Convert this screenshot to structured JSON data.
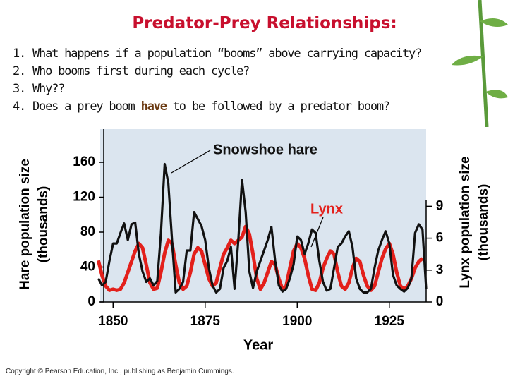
{
  "slide": {
    "title": "Predator-Prey Relationships:",
    "questions": [
      {
        "number": "1.",
        "parts": [
          "What happens if a population “booms” above carrying capacity?"
        ]
      },
      {
        "number": "2.",
        "parts": [
          "Who booms first during each cycle?"
        ]
      },
      {
        "number": "3.",
        "parts": [
          "Why??"
        ]
      },
      {
        "number": "4.",
        "parts": [
          "Does a prey boom ",
          "have",
          " to be followed by a predator boom?"
        ]
      }
    ],
    "copyright": "Copyright © Pearson Education, Inc., publishing as Benjamin Cummings."
  },
  "chart_data": {
    "type": "line",
    "xlabel": "Year",
    "ylabel": [
      "Hare population size",
      "(thousands)"
    ],
    "y2label": [
      "Lynx population size",
      "(thousands)"
    ],
    "annotations": [
      "Snowshoe hare",
      "Lynx"
    ],
    "x": [
      1846,
      1847,
      1848,
      1849,
      1850,
      1851,
      1852,
      1853,
      1854,
      1855,
      1856,
      1857,
      1858,
      1859,
      1860,
      1861,
      1862,
      1863,
      1864,
      1865,
      1866,
      1867,
      1868,
      1869,
      1870,
      1871,
      1872,
      1873,
      1874,
      1875,
      1876,
      1877,
      1878,
      1879,
      1880,
      1881,
      1882,
      1883,
      1884,
      1885,
      1886,
      1887,
      1888,
      1889,
      1890,
      1891,
      1892,
      1893,
      1894,
      1895,
      1896,
      1897,
      1898,
      1899,
      1900,
      1901,
      1902,
      1903,
      1904,
      1905,
      1906,
      1907,
      1908,
      1909,
      1910,
      1911,
      1912,
      1913,
      1914,
      1915,
      1916,
      1917,
      1918,
      1919,
      1920,
      1921,
      1922,
      1923,
      1924,
      1925,
      1926,
      1927,
      1928,
      1929,
      1930,
      1931,
      1932,
      1933,
      1934,
      1935
    ],
    "series": [
      {
        "name": "Snowshoe hare",
        "color": "#111111",
        "axis": "y",
        "values": [
          27,
          19,
          23,
          47,
          67,
          67,
          79,
          90,
          71,
          89,
          91,
          55,
          35,
          23,
          27,
          19,
          24,
          79,
          158,
          136,
          71,
          11,
          15,
          23,
          59,
          59,
          103,
          95,
          87,
          71,
          39,
          19,
          11,
          15,
          39,
          47,
          63,
          15,
          71,
          140,
          103,
          35,
          16,
          35,
          47,
          59,
          71,
          86,
          47,
          19,
          12,
          15,
          27,
          43,
          75,
          71,
          55,
          67,
          83,
          79,
          47,
          23,
          13,
          15,
          39,
          63,
          67,
          75,
          81,
          63,
          27,
          15,
          11,
          11,
          15,
          39,
          59,
          71,
          81,
          67,
          31,
          19,
          15,
          12,
          16,
          27,
          79,
          89,
          83,
          15
        ]
      },
      {
        "name": "Lynx",
        "color": "#e3201b",
        "axis": "y2",
        "values": [
          3.9,
          2.5,
          1.5,
          1.1,
          1.2,
          1.1,
          1.2,
          1.8,
          2.8,
          3.8,
          4.8,
          5.5,
          5.1,
          3.5,
          1.8,
          1.2,
          1.3,
          2.8,
          4.6,
          5.8,
          5.5,
          3.5,
          1.8,
          1.2,
          1.5,
          2.8,
          4.5,
          5.1,
          4.8,
          3.5,
          2.2,
          1.5,
          1.8,
          3.2,
          4.5,
          5.1,
          5.8,
          5.5,
          5.8,
          6.1,
          7.1,
          6.4,
          4.5,
          2.2,
          1.2,
          1.8,
          2.8,
          3.8,
          3.5,
          2.2,
          1.2,
          1.5,
          3.2,
          4.8,
          5.5,
          5.1,
          4.1,
          2.5,
          1.2,
          1.1,
          1.8,
          3.2,
          4.1,
          4.8,
          4.5,
          2.8,
          1.5,
          1.2,
          1.8,
          3.2,
          4.1,
          3.8,
          2.5,
          1.5,
          1.1,
          1.5,
          2.8,
          4.1,
          5.0,
          5.5,
          4.5,
          2.8,
          1.5,
          1.2,
          1.5,
          2.2,
          3.2,
          3.8,
          4.1,
          null
        ]
      }
    ],
    "xlim": [
      1846.5,
      1935
    ],
    "xticks": [
      1850,
      1875,
      1900,
      1925
    ],
    "ylim": [
      0,
      198
    ],
    "yticks": [
      0,
      40,
      80,
      120,
      160
    ],
    "y2lim": [
      0,
      16.26
    ],
    "y2ticks": [
      0,
      3,
      6,
      9
    ]
  }
}
